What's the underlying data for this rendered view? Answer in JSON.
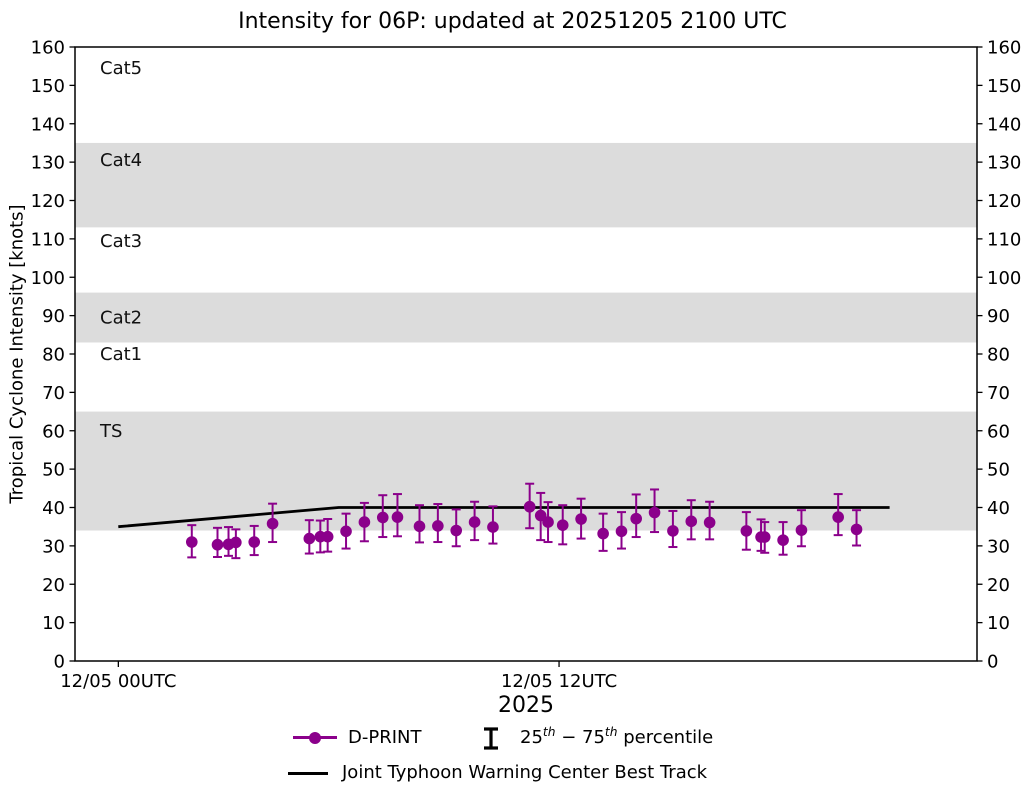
{
  "title": "Intensity for 06P: updated at 20251205 2100 UTC",
  "colors": {
    "dprint": "#8B008B",
    "best_track": "#000000",
    "band_gray": "#DCDCDC",
    "text": "#000000"
  },
  "y_axis": {
    "label": "Tropical Cyclone Intensity [knots]",
    "ticks": [
      0,
      10,
      20,
      30,
      40,
      50,
      60,
      70,
      80,
      90,
      100,
      110,
      120,
      130,
      140,
      150,
      160
    ]
  },
  "x_axis": {
    "ticks": [
      {
        "t": 0,
        "label": "12/05 00UTC"
      },
      {
        "t": 12,
        "label": "12/05 12UTC"
      }
    ],
    "year_label": "2025"
  },
  "category_bands": [
    {
      "label": "Cat5",
      "shaded": false,
      "range": [
        135,
        160
      ],
      "label_at": 154.5
    },
    {
      "label": "Cat4",
      "shaded": true,
      "range": [
        113,
        135
      ],
      "label_at": 130.5
    },
    {
      "label": "Cat3",
      "shaded": false,
      "range": [
        96,
        113
      ],
      "label_at": 109.5
    },
    {
      "label": "Cat2",
      "shaded": true,
      "range": [
        83,
        96
      ],
      "label_at": 89.5
    },
    {
      "label": "Cat1",
      "shaded": false,
      "range": [
        65,
        83
      ],
      "label_at": 80
    },
    {
      "label": "TS",
      "shaded": true,
      "range": [
        34,
        65
      ],
      "label_at": 60
    }
  ],
  "chart_data": {
    "type": "scatter",
    "x_unit": "hours after 2025-12-05 00:00 UTC",
    "y_unit": "knots",
    "ylim": [
      0,
      160
    ],
    "xlim_hours": [
      -1.18,
      23.38
    ],
    "grid": false,
    "series": [
      {
        "name": "D-PRINT",
        "type": "scatter",
        "color": "#8B008B",
        "marker": "circle",
        "errorbars": "25th-75th percentile",
        "point_format": [
          "hours_after_1205_0000UTC",
          "intensity_kt",
          "p25_kt",
          "p75_kt"
        ],
        "points": [
          [
            2.0,
            31.0,
            27.0,
            35.4
          ],
          [
            2.7,
            30.3,
            27.1,
            34.7
          ],
          [
            3.0,
            30.4,
            27.4,
            34.9
          ],
          [
            3.2,
            30.9,
            26.8,
            34.3
          ],
          [
            3.7,
            31.0,
            27.6,
            35.2
          ],
          [
            4.2,
            35.8,
            31.0,
            41.0
          ],
          [
            5.2,
            31.9,
            28.0,
            36.7
          ],
          [
            5.5,
            32.4,
            28.3,
            36.6
          ],
          [
            5.7,
            32.4,
            28.5,
            37.0
          ],
          [
            6.2,
            33.8,
            29.3,
            38.4
          ],
          [
            6.7,
            36.2,
            31.2,
            41.2
          ],
          [
            7.2,
            37.4,
            32.3,
            43.2
          ],
          [
            7.6,
            37.5,
            32.5,
            43.5
          ],
          [
            8.2,
            35.1,
            30.9,
            40.6
          ],
          [
            8.7,
            35.2,
            31.0,
            40.9
          ],
          [
            9.2,
            34.0,
            29.9,
            39.5
          ],
          [
            9.7,
            36.2,
            31.5,
            41.5
          ],
          [
            10.2,
            34.9,
            30.6,
            40.3
          ],
          [
            11.2,
            40.2,
            34.6,
            46.2
          ],
          [
            11.5,
            37.9,
            31.5,
            43.8
          ],
          [
            11.7,
            36.2,
            31.0,
            41.4
          ],
          [
            12.1,
            35.4,
            30.4,
            40.6
          ],
          [
            12.6,
            37.0,
            31.9,
            42.3
          ],
          [
            13.2,
            33.2,
            28.7,
            38.4
          ],
          [
            13.7,
            33.8,
            29.3,
            38.8
          ],
          [
            14.1,
            37.1,
            32.3,
            43.4
          ],
          [
            14.6,
            38.7,
            33.6,
            44.7
          ],
          [
            15.1,
            33.9,
            29.7,
            39.1
          ],
          [
            15.6,
            36.4,
            31.7,
            41.9
          ],
          [
            16.1,
            36.1,
            31.7,
            41.5
          ],
          [
            17.1,
            33.9,
            29.0,
            38.8
          ],
          [
            17.5,
            32.3,
            28.7,
            36.9
          ],
          [
            17.6,
            32.3,
            28.2,
            36.2
          ],
          [
            18.1,
            31.5,
            27.7,
            36.2
          ],
          [
            18.6,
            34.1,
            29.9,
            39.3
          ],
          [
            19.6,
            37.5,
            32.8,
            43.5
          ],
          [
            20.1,
            34.3,
            30.1,
            39.3
          ]
        ]
      },
      {
        "name": "Joint Typhoon Warning Center Best Track",
        "type": "line",
        "color": "#000000",
        "point_format": [
          "hours_after_1205_0000UTC",
          "intensity_kt"
        ],
        "points": [
          [
            0,
            35
          ],
          [
            6,
            40
          ],
          [
            12,
            40
          ],
          [
            18,
            40
          ],
          [
            21,
            40
          ]
        ]
      }
    ]
  },
  "legend": {
    "dprint_label": "D-PRINT",
    "percentile": {
      "p1": "25",
      "s1": "th",
      "p2": " − 75",
      "s2": "th",
      "p3": " percentile"
    },
    "besttrack_label": "Joint Typhoon Warning Center Best Track"
  }
}
